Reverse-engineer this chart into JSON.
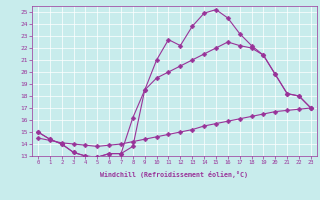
{
  "xlabel": "Windchill (Refroidissement éolien,°C)",
  "xlim": [
    -0.5,
    23.5
  ],
  "ylim": [
    13,
    25.5
  ],
  "xticks": [
    0,
    1,
    2,
    3,
    4,
    5,
    6,
    7,
    8,
    9,
    10,
    11,
    12,
    13,
    14,
    15,
    16,
    17,
    18,
    19,
    20,
    21,
    22,
    23
  ],
  "yticks": [
    13,
    14,
    15,
    16,
    17,
    18,
    19,
    20,
    21,
    22,
    23,
    24,
    25
  ],
  "bg_color": "#c8ecec",
  "line_color": "#993399",
  "grid_color": "#ffffff",
  "line1_x": [
    0,
    1,
    2,
    3,
    4,
    5,
    6,
    7,
    8,
    9,
    10,
    11,
    12,
    13,
    14,
    15,
    16,
    17,
    18,
    19,
    20,
    21,
    22,
    23
  ],
  "line1_y": [
    15.0,
    14.4,
    14.0,
    13.3,
    13.0,
    12.9,
    13.2,
    13.2,
    13.8,
    18.5,
    21.0,
    22.7,
    22.2,
    23.8,
    24.9,
    25.2,
    24.5,
    23.2,
    22.2,
    21.4,
    19.8,
    18.2,
    18.0,
    17.0
  ],
  "line2_x": [
    0,
    1,
    2,
    3,
    4,
    5,
    6,
    7,
    8,
    9,
    10,
    11,
    12,
    13,
    14,
    15,
    16,
    17,
    18,
    19,
    20,
    21,
    22,
    23
  ],
  "line2_y": [
    15.0,
    14.4,
    14.0,
    13.3,
    13.0,
    12.9,
    13.2,
    13.2,
    16.2,
    18.5,
    19.5,
    20.0,
    20.5,
    21.0,
    21.5,
    22.0,
    22.5,
    22.2,
    22.0,
    21.4,
    19.8,
    18.2,
    18.0,
    17.0
  ],
  "line3_x": [
    0,
    1,
    2,
    3,
    4,
    5,
    6,
    7,
    8,
    9,
    10,
    11,
    12,
    13,
    14,
    15,
    16,
    17,
    18,
    19,
    20,
    21,
    22,
    23
  ],
  "line3_y": [
    14.5,
    14.3,
    14.1,
    14.0,
    13.9,
    13.8,
    13.9,
    14.0,
    14.2,
    14.4,
    14.6,
    14.8,
    15.0,
    15.2,
    15.5,
    15.7,
    15.9,
    16.1,
    16.3,
    16.5,
    16.7,
    16.8,
    16.9,
    17.0
  ],
  "marker": "D",
  "markersize": 2.5,
  "linewidth": 0.8
}
